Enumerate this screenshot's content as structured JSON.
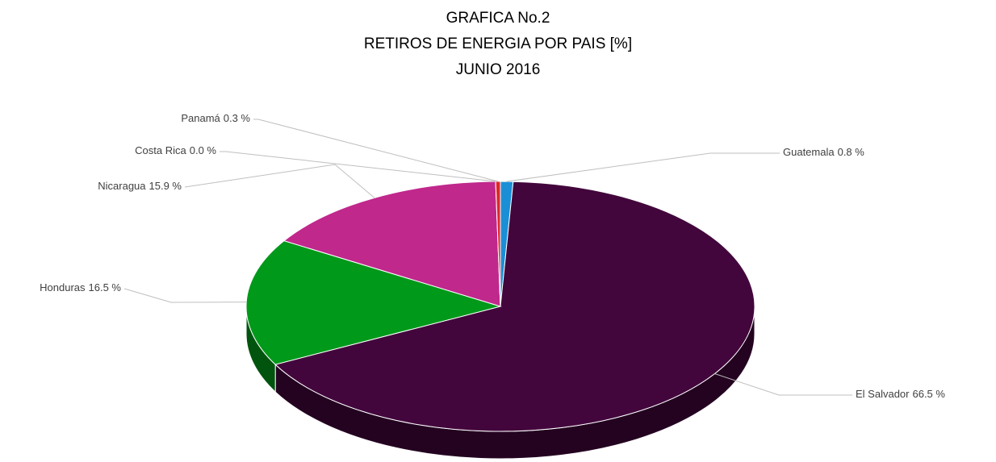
{
  "chart_data": {
    "type": "pie3d",
    "title": "GRAFICA No.2",
    "subtitle": [
      "RETIROS DE ENERGIA POR PAIS [%]",
      "JUNIO 2016"
    ],
    "categories": [
      "Guatemala",
      "El Salvador",
      "Honduras",
      "Nicaragua",
      "Costa Rica",
      "Panamá"
    ],
    "values": [
      0.8,
      66.5,
      16.5,
      15.9,
      0.0,
      0.3
    ],
    "value_labels": [
      "0.8 %",
      "66.5 %",
      "16.5 %",
      "15.9 %",
      "0.0 %",
      "0.3 %"
    ],
    "colors": [
      "#1a8fd6",
      "#42063c",
      "#00991a",
      "#c0288c",
      "#f28c1e",
      "#e0262b"
    ]
  }
}
